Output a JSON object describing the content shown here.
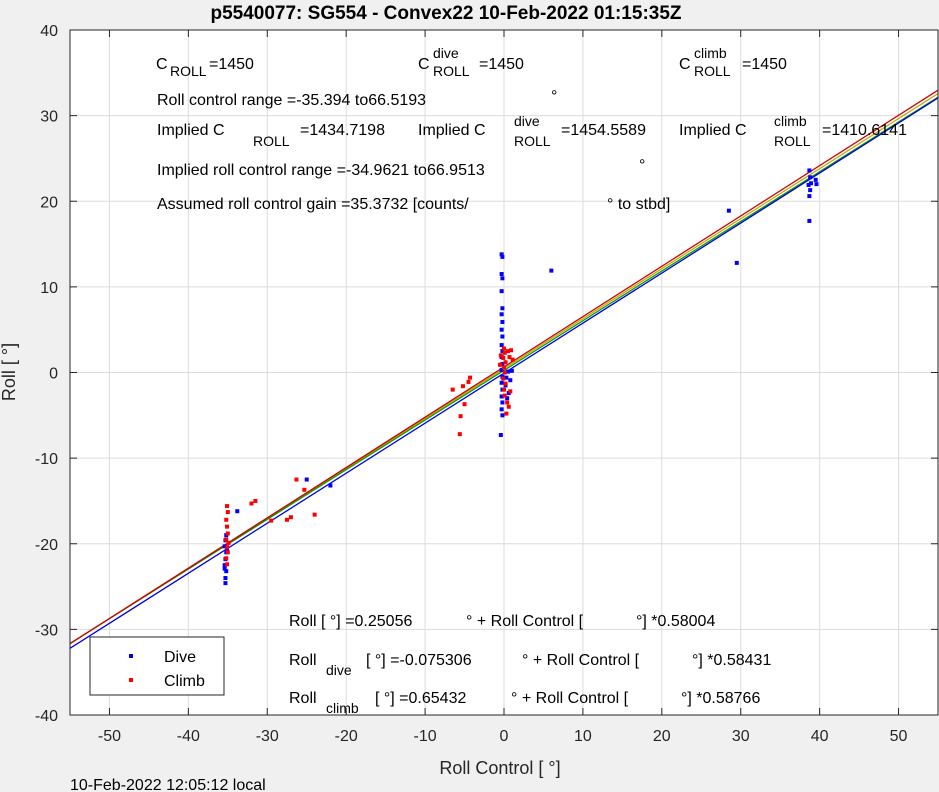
{
  "chart_data": {
    "type": "scatter",
    "title": "p5540077: SG554 - Convex22 10-Feb-2022 01:15:35Z",
    "xlabel": "Roll Control [   °]",
    "ylabel": "Roll [  °]",
    "xlim": [
      -55,
      55
    ],
    "ylim": [
      -40,
      40
    ],
    "xticks": [
      -50,
      -40,
      -30,
      -20,
      -10,
      0,
      10,
      20,
      30,
      40,
      50
    ],
    "yticks": [
      -40,
      -30,
      -20,
      -10,
      0,
      10,
      20,
      30,
      40
    ],
    "grid": true,
    "legend": {
      "placement": "bottom-left",
      "entries": [
        "Dive",
        "Climb"
      ]
    },
    "footer": "10-Feb-2022 12:05:12 local",
    "colors": {
      "dive": "#0000ff",
      "climb": "#ff0000",
      "fit_all": "#00a000",
      "fit_dive": "#0000e0",
      "fit_climb": "#d00000",
      "fit_extra": "#c8a000"
    },
    "series": [
      {
        "name": "Dive",
        "points": [
          [
            -35.3,
            -24.6
          ],
          [
            -35.3,
            -24.0
          ],
          [
            -35.2,
            -23.2
          ],
          [
            -35.4,
            -22.5
          ],
          [
            -35.3,
            -21.8
          ],
          [
            -35.2,
            -21.0
          ],
          [
            -35.4,
            -20.3
          ],
          [
            -35.3,
            -19.6
          ],
          [
            -35.2,
            -19.0
          ],
          [
            -35.4,
            -22.9
          ],
          [
            -35.1,
            -20.8
          ],
          [
            -33.8,
            -16.2
          ],
          [
            -25.0,
            -12.5
          ],
          [
            -22.0,
            -13.2
          ],
          [
            -0.3,
            13.8
          ],
          [
            -0.2,
            13.5
          ],
          [
            -0.3,
            11.5
          ],
          [
            -0.2,
            11.0
          ],
          [
            -0.3,
            9.5
          ],
          [
            -0.2,
            7.5
          ],
          [
            -0.3,
            6.8
          ],
          [
            -0.2,
            5.9
          ],
          [
            -0.3,
            5.0
          ],
          [
            -0.2,
            4.2
          ],
          [
            -0.3,
            3.2
          ],
          [
            -0.2,
            2.5
          ],
          [
            -0.3,
            1.8
          ],
          [
            -0.2,
            1.0
          ],
          [
            -0.3,
            0.3
          ],
          [
            -0.2,
            -0.5
          ],
          [
            -0.3,
            -1.2
          ],
          [
            -0.2,
            -2.0
          ],
          [
            -0.3,
            -2.8
          ],
          [
            -0.2,
            -3.5
          ],
          [
            -0.3,
            -4.3
          ],
          [
            -0.2,
            -5.0
          ],
          [
            -0.4,
            -7.3
          ],
          [
            0.3,
            -0.6
          ],
          [
            0.5,
            0.1
          ],
          [
            0.8,
            -0.9
          ],
          [
            1.0,
            0.2
          ],
          [
            0.2,
            -1.5
          ],
          [
            0.6,
            -2.4
          ],
          [
            0.4,
            -3.0
          ],
          [
            6.0,
            11.9
          ],
          [
            28.5,
            18.9
          ],
          [
            29.5,
            12.8
          ],
          [
            38.7,
            23.6
          ],
          [
            38.8,
            22.8
          ],
          [
            38.6,
            21.9
          ],
          [
            38.8,
            21.3
          ],
          [
            38.7,
            20.6
          ],
          [
            38.9,
            22.1
          ],
          [
            39.5,
            22.5
          ],
          [
            39.6,
            22.0
          ],
          [
            38.7,
            17.7
          ]
        ]
      },
      {
        "name": "Climb",
        "points": [
          [
            -35.1,
            -15.6
          ],
          [
            -35.0,
            -16.3
          ],
          [
            -35.2,
            -17.2
          ],
          [
            -35.1,
            -18.0
          ],
          [
            -35.0,
            -18.8
          ],
          [
            -35.2,
            -19.5
          ],
          [
            -35.1,
            -20.4
          ],
          [
            -35.0,
            -21.0
          ],
          [
            -35.2,
            -21.7
          ],
          [
            -35.1,
            -22.4
          ],
          [
            -34.9,
            -19.9
          ],
          [
            -32.0,
            -15.3
          ],
          [
            -31.5,
            -15.0
          ],
          [
            -29.5,
            -17.3
          ],
          [
            -27.5,
            -17.2
          ],
          [
            -27.0,
            -16.9
          ],
          [
            -26.3,
            -12.5
          ],
          [
            -25.3,
            -13.7
          ],
          [
            -24.0,
            -16.6
          ],
          [
            -6.5,
            -2.0
          ],
          [
            -5.5,
            -5.1
          ],
          [
            -5.2,
            -1.6
          ],
          [
            -5.0,
            -3.7
          ],
          [
            -4.5,
            -1.1
          ],
          [
            -4.3,
            -0.6
          ],
          [
            -5.6,
            -7.2
          ],
          [
            0.0,
            2.8
          ],
          [
            0.1,
            2.3
          ],
          [
            -0.1,
            1.7
          ],
          [
            0.2,
            1.2
          ],
          [
            0.0,
            0.6
          ],
          [
            0.1,
            0.0
          ],
          [
            -0.1,
            -0.7
          ],
          [
            0.2,
            -1.3
          ],
          [
            0.0,
            -2.0
          ],
          [
            0.1,
            -2.7
          ],
          [
            0.5,
            2.5
          ],
          [
            0.7,
            1.8
          ],
          [
            0.4,
            -3.5
          ],
          [
            0.6,
            -4.0
          ],
          [
            0.3,
            -4.8
          ],
          [
            -0.4,
            2.0
          ],
          [
            -0.5,
            0.9
          ],
          [
            0.9,
            2.6
          ],
          [
            1.1,
            1.5
          ],
          [
            0.8,
            -2.2
          ]
        ]
      }
    ],
    "fits": [
      {
        "name": "all",
        "intercept": 0.25056,
        "slope": 0.58004
      },
      {
        "name": "dive",
        "intercept": -0.075306,
        "slope": 0.58431
      },
      {
        "name": "climb",
        "intercept": 0.65432,
        "slope": 0.58766
      }
    ],
    "annotations": {
      "c_roll": {
        "c": "C",
        "sub": "ROLL",
        "value": "=1450"
      },
      "c_roll_dive": {
        "c": "C",
        "sup": "dive",
        "sub": "ROLL",
        "value": "=1450"
      },
      "c_roll_climb": {
        "c": "C",
        "sup": "climb",
        "sub": "ROLL",
        "value": "=1450"
      },
      "range": "Roll control range =-35.394 to66.5193",
      "range_deg": "°",
      "implied_label": "Implied C",
      "implied_c_roll": {
        "sub": "ROLL",
        "value": "=1434.7198"
      },
      "implied_c_roll_dive": {
        "sup": "dive",
        "sub": "ROLL",
        "value": "=1454.5589"
      },
      "implied_c_roll_climb": {
        "sup": "climb",
        "sub": "ROLL",
        "value": "=1410.6141"
      },
      "implied_range": "Implied roll control range =-34.9621 to66.9513",
      "implied_range_deg": "°",
      "gain": "Assumed roll control gain =35.3732 [counts/",
      "gain_unit": "° to stbd]",
      "eq_all": {
        "pre": "Roll [  °] =0.25056",
        "mid": "° + Roll Control [",
        "post": "°] *0.58004"
      },
      "eq_dive": {
        "base": "Roll",
        "sub": "dive",
        "pre": "[  °] =-0.075306",
        "mid": "° + Roll Control [",
        "post": "°] *0.58431"
      },
      "eq_climb": {
        "base": "Roll",
        "sub": "climb",
        "pre": "[  °] =0.65432",
        "mid": "° + Roll Control [",
        "post": "°] *0.58766"
      }
    }
  }
}
